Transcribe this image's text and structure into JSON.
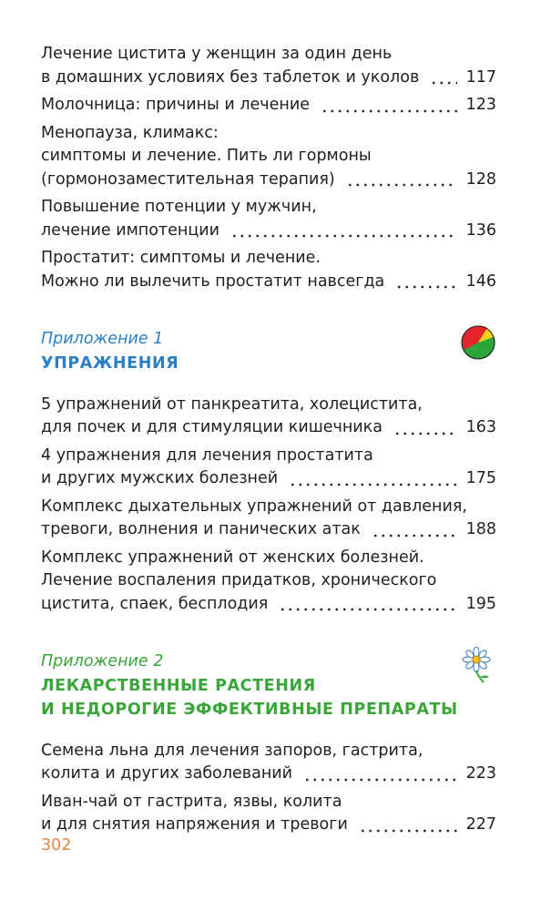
{
  "entries": [
    {
      "lines": [
        "Лечение цистита у женщин за один день",
        "в домашних условиях без таблеток и уколов"
      ],
      "page": 117
    },
    {
      "lines": [
        "Молочница: причины и лечение"
      ],
      "page": 123
    },
    {
      "lines": [
        "Менопауза, климакс:",
        "симптомы и лечение. Пить ли гормоны",
        "(гормонозаместительная терапия)"
      ],
      "page": 128
    },
    {
      "lines": [
        "Повышение потенции у мужчин,",
        "лечение импотенции"
      ],
      "page": 136
    },
    {
      "lines": [
        "Простатит: симптомы и лечение.",
        "Можно ли вылечить простатит навсегда"
      ],
      "page": 146
    }
  ],
  "appendices": [
    {
      "label": "Приложение 1",
      "title": [
        "УПРАЖНЕНИЯ"
      ],
      "entries": [
        {
          "lines": [
            "5 упражнений от панкреатита, холецистита,",
            "для почек и для стимуляции кишечника"
          ],
          "page": 163
        },
        {
          "lines": [
            "4 упражнения для лечения простатита",
            "и других мужских болезней"
          ],
          "page": 175
        },
        {
          "lines": [
            "Комплекс дыхательных упражнений от давления,",
            "тревоги, волнения и панических атак"
          ],
          "page": 188
        },
        {
          "lines": [
            "Комплекс упражнений от женских болезней.",
            "Лечение воспаления придатков, хронического",
            "цистита, спаек, бесплодия"
          ],
          "page": 195
        }
      ]
    },
    {
      "label": "Приложение 2",
      "title": [
        "ЛЕКАРСТВЕННЫЕ РАСТЕНИЯ",
        "И НЕДОРОГИЕ ЭФФЕКТИВНЫЕ ПРЕПАРАТЫ"
      ],
      "entries": [
        {
          "lines": [
            "Семена льна для лечения запоров, гастрита,",
            "колита и других заболеваний"
          ],
          "page": 223
        },
        {
          "lines": [
            "Иван-чай от гастрита, язвы, колита",
            "и для снятия напряжения и тревоги"
          ],
          "page": 227
        }
      ]
    }
  ],
  "page_number": 302
}
